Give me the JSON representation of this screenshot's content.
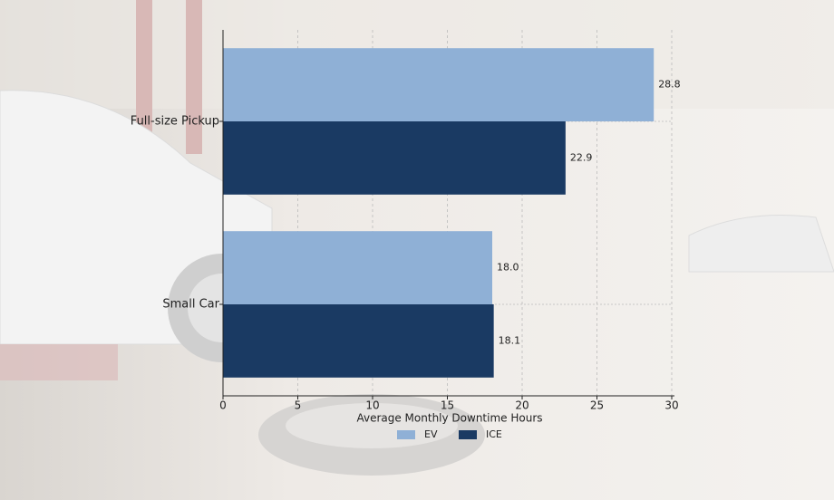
{
  "chart_data": {
    "type": "barh",
    "x_label": "Average Monthly Downtime Hours",
    "categories": [
      "Full-size Pickup",
      "Small Car"
    ],
    "series": [
      {
        "name": "EV",
        "color": "#8fb0d6",
        "values": [
          28.8,
          18.0
        ],
        "value_labels": [
          "28.8",
          "18.0"
        ]
      },
      {
        "name": "ICE",
        "color": "#1a3a63",
        "values": [
          22.9,
          18.1
        ],
        "value_labels": [
          "22.9",
          "18.1"
        ]
      }
    ],
    "xlim": [
      0,
      30
    ],
    "xticks": [
      0,
      5,
      10,
      15,
      20,
      25,
      30
    ],
    "grid": true,
    "legend": "bottom"
  }
}
